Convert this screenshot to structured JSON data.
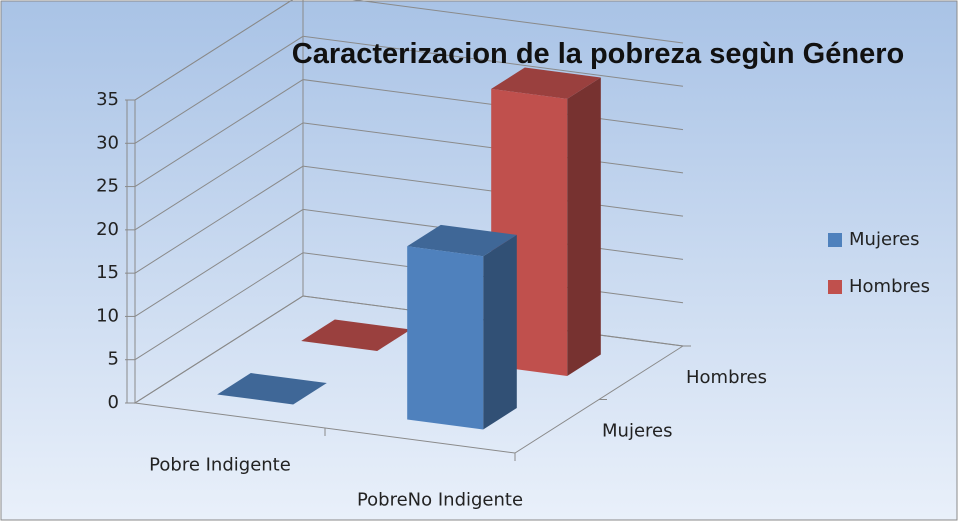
{
  "chart_data": {
    "type": "bar3d",
    "title": "Caracterizacion de la pobreza segùn Género",
    "categories": [
      "Pobre Indigente",
      "PobreNo Indigente"
    ],
    "series": [
      {
        "name": "Mujeres",
        "color": "#4f81bd",
        "values": [
          0,
          20
        ]
      },
      {
        "name": "Hombres",
        "color": "#c0504d",
        "values": [
          0,
          32
        ]
      }
    ],
    "ylim": [
      0,
      35
    ],
    "yticks": [
      0,
      5,
      10,
      15,
      20,
      25,
      30,
      35
    ],
    "grid": true,
    "legend": "right"
  }
}
